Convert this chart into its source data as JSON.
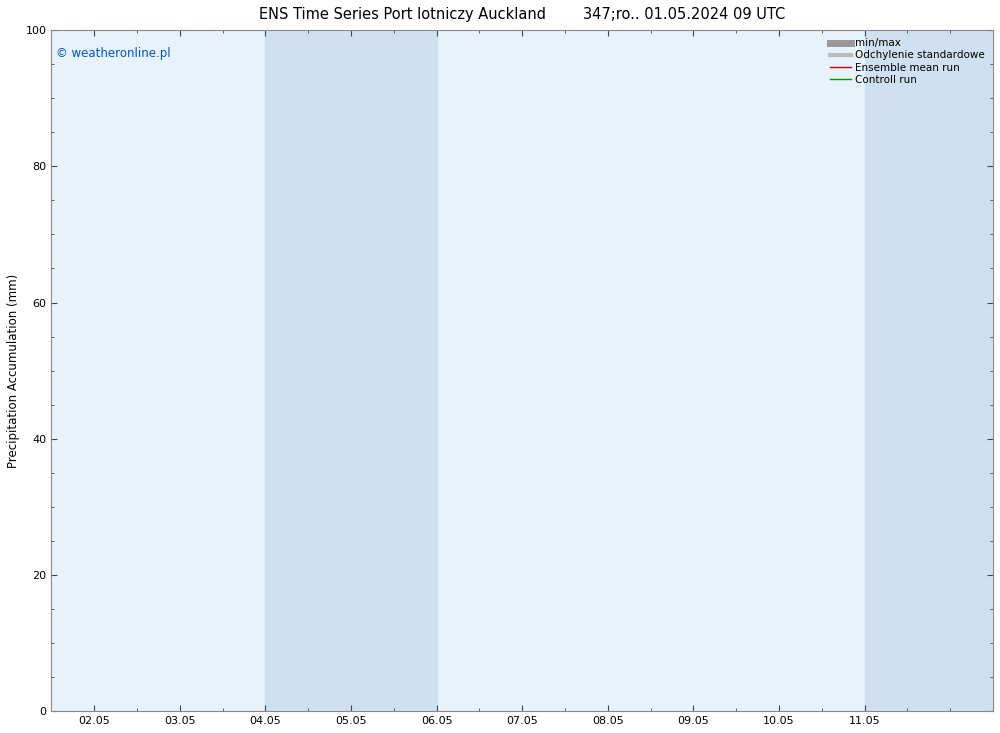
{
  "title_left": "ENS Time Series Port lotniczy Auckland",
  "title_right": "347;ro.. 01.05.2024 09 UTC",
  "ylabel": "Precipitation Accumulation (mm)",
  "ylim": [
    0,
    100
  ],
  "yticks": [
    0,
    20,
    40,
    60,
    80,
    100
  ],
  "xtick_labels": [
    "02.05",
    "03.05",
    "04.05",
    "05.05",
    "06.05",
    "07.05",
    "08.05",
    "09.05",
    "10.05",
    "11.05"
  ],
  "xtick_positions": [
    0,
    1,
    2,
    3,
    4,
    5,
    6,
    7,
    8,
    9
  ],
  "xlim": [
    -0.5,
    10.5
  ],
  "shaded_bands": [
    {
      "xmin": 2,
      "xmax": 4,
      "color": "#cfe1f0"
    },
    {
      "xmin": 9,
      "xmax": 10.5,
      "color": "#cfe1f0"
    }
  ],
  "plot_bg_color": "#e8f2fb",
  "figure_bg_color": "#ffffff",
  "copyright_text": "© weatheronline.pl",
  "copyright_color": "#0055cc",
  "legend_entries": [
    {
      "label": "min/max",
      "color": "#999999",
      "linewidth": 5,
      "linestyle": "-"
    },
    {
      "label": "Odchylenie standardowe",
      "color": "#bbbbbb",
      "linewidth": 3,
      "linestyle": "-"
    },
    {
      "label": "Ensemble mean run",
      "color": "#cc0000",
      "linewidth": 1.0,
      "linestyle": "-"
    },
    {
      "label": "Controll run",
      "color": "#009900",
      "linewidth": 1.0,
      "linestyle": "-"
    }
  ],
  "title_fontsize": 10.5,
  "ylabel_fontsize": 8.5,
  "tick_fontsize": 8,
  "legend_fontsize": 7.5,
  "copyright_fontsize": 8.5,
  "spine_color": "#888888",
  "tick_color": "#444444"
}
